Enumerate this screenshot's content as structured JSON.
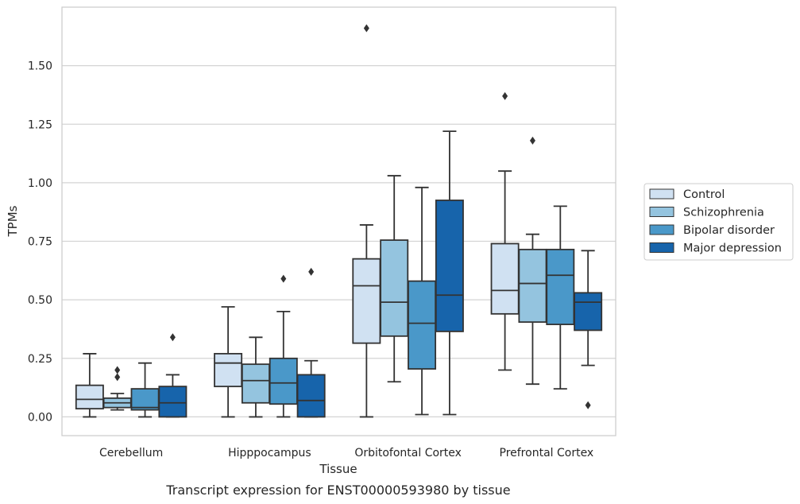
{
  "caption": "Transcript expression for ENST00000593980 by tissue",
  "chart_data": {
    "type": "box",
    "xlabel": "Tissue",
    "ylabel": "TPMs",
    "ylim": [
      -0.08,
      1.75
    ],
    "yticks": [
      0.0,
      0.25,
      0.5,
      0.75,
      1.0,
      1.25,
      1.5
    ],
    "ytick_labels": [
      "0.00",
      "0.25",
      "0.50",
      "0.75",
      "1.00",
      "1.25",
      "1.50"
    ],
    "grid": "horizontal",
    "legend_position": "right, outside plot",
    "categories": [
      "Cerebellum",
      "Hipppocampus",
      "Orbitofontal Cortex",
      "Prefrontal Cortex"
    ],
    "series": [
      {
        "name": "Control",
        "color": "#d0e1f2",
        "boxes": [
          {
            "whisker_low": 0.0,
            "q1": 0.035,
            "median": 0.075,
            "q3": 0.135,
            "whisker_high": 0.27,
            "outliers": []
          },
          {
            "whisker_low": 0.0,
            "q1": 0.13,
            "median": 0.23,
            "q3": 0.27,
            "whisker_high": 0.47,
            "outliers": []
          },
          {
            "whisker_low": 0.0,
            "q1": 0.315,
            "median": 0.56,
            "q3": 0.675,
            "whisker_high": 0.82,
            "outliers": [
              1.66
            ]
          },
          {
            "whisker_low": 0.2,
            "q1": 0.44,
            "median": 0.54,
            "q3": 0.74,
            "whisker_high": 1.05,
            "outliers": [
              1.37
            ]
          }
        ]
      },
      {
        "name": "Schizophrenia",
        "color": "#94c4df",
        "boxes": [
          {
            "whisker_low": 0.03,
            "q1": 0.04,
            "median": 0.06,
            "q3": 0.08,
            "whisker_high": 0.1,
            "outliers": [
              0.17,
              0.2
            ]
          },
          {
            "whisker_low": 0.0,
            "q1": 0.06,
            "median": 0.155,
            "q3": 0.225,
            "whisker_high": 0.34,
            "outliers": []
          },
          {
            "whisker_low": 0.15,
            "q1": 0.345,
            "median": 0.49,
            "q3": 0.755,
            "whisker_high": 1.03,
            "outliers": []
          },
          {
            "whisker_low": 0.14,
            "q1": 0.405,
            "median": 0.57,
            "q3": 0.715,
            "whisker_high": 0.78,
            "outliers": [
              1.18
            ]
          }
        ]
      },
      {
        "name": "Bipolar disorder",
        "color": "#4a98c9",
        "boxes": [
          {
            "whisker_low": 0.0,
            "q1": 0.03,
            "median": 0.04,
            "q3": 0.12,
            "whisker_high": 0.23,
            "outliers": []
          },
          {
            "whisker_low": 0.0,
            "q1": 0.055,
            "median": 0.145,
            "q3": 0.25,
            "whisker_high": 0.45,
            "outliers": [
              0.59
            ]
          },
          {
            "whisker_low": 0.01,
            "q1": 0.205,
            "median": 0.4,
            "q3": 0.58,
            "whisker_high": 0.98,
            "outliers": []
          },
          {
            "whisker_low": 0.12,
            "q1": 0.395,
            "median": 0.605,
            "q3": 0.715,
            "whisker_high": 0.9,
            "outliers": []
          }
        ]
      },
      {
        "name": "Major depression",
        "color": "#1764ab",
        "boxes": [
          {
            "whisker_low": 0.0,
            "q1": 0.0,
            "median": 0.06,
            "q3": 0.13,
            "whisker_high": 0.18,
            "outliers": [
              0.34
            ]
          },
          {
            "whisker_low": 0.0,
            "q1": 0.0,
            "median": 0.07,
            "q3": 0.18,
            "whisker_high": 0.24,
            "outliers": [
              0.62
            ]
          },
          {
            "whisker_low": 0.01,
            "q1": 0.365,
            "median": 0.52,
            "q3": 0.925,
            "whisker_high": 1.22,
            "outliers": []
          },
          {
            "whisker_low": 0.22,
            "q1": 0.37,
            "median": 0.49,
            "q3": 0.53,
            "whisker_high": 0.71,
            "outliers": [
              0.05
            ]
          }
        ]
      }
    ]
  }
}
